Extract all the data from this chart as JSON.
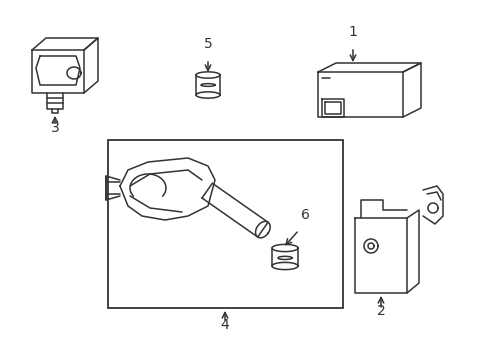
{
  "background_color": "#ffffff",
  "line_color": "#333333",
  "line_width": 1.1,
  "figsize": [
    4.89,
    3.6
  ],
  "dpi": 100
}
